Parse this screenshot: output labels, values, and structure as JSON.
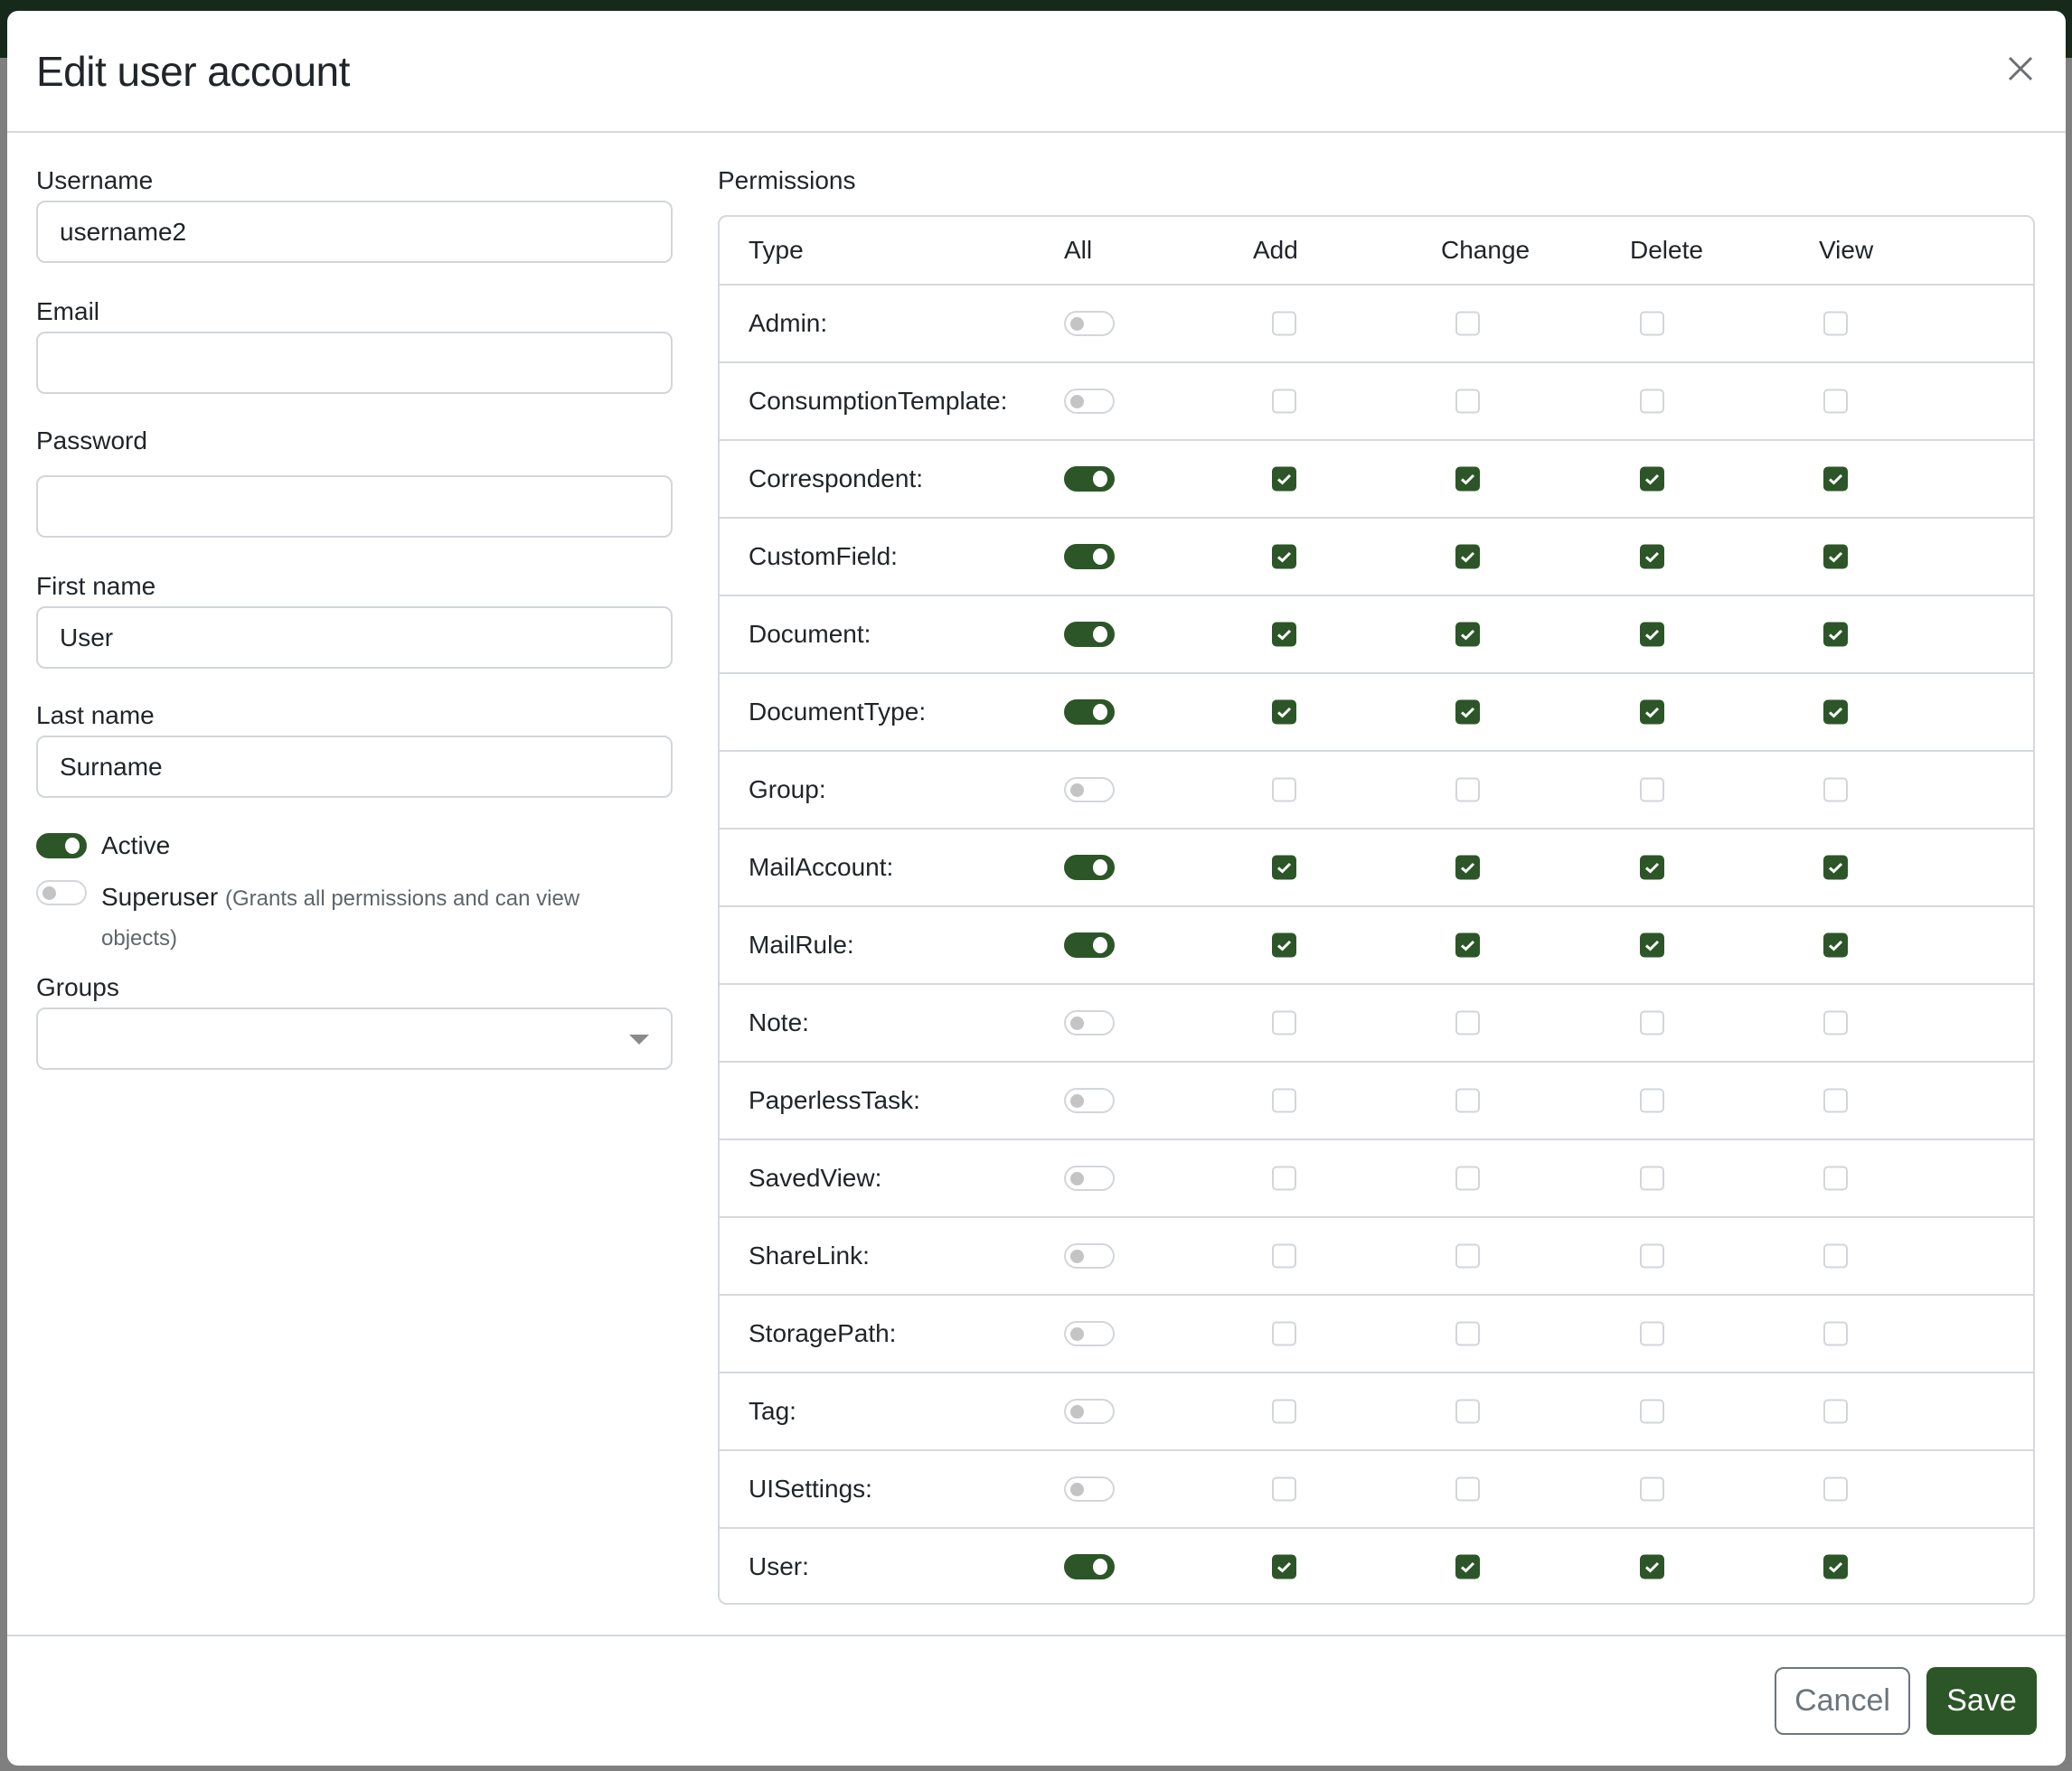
{
  "dialog": {
    "title": "Edit user account",
    "close_icon": "close-icon"
  },
  "form": {
    "username": {
      "label": "Username",
      "value": "username2"
    },
    "email": {
      "label": "Email",
      "value": ""
    },
    "password": {
      "label": "Password",
      "value": ""
    },
    "first_name": {
      "label": "First name",
      "value": "User"
    },
    "last_name": {
      "label": "Last name",
      "value": "Surname"
    },
    "active": {
      "label": "Active",
      "checked": true
    },
    "superuser": {
      "label": "Superuser",
      "hint": "(Grants all permissions and can view objects)",
      "checked": false
    },
    "groups": {
      "label": "Groups",
      "value": ""
    }
  },
  "permissions": {
    "label": "Permissions",
    "columns": [
      "Type",
      "All",
      "Add",
      "Change",
      "Delete",
      "View"
    ],
    "rows": [
      {
        "type": "Admin:",
        "all": false
      },
      {
        "type": "ConsumptionTemplate:",
        "all": false
      },
      {
        "type": "Correspondent:",
        "all": true
      },
      {
        "type": "CustomField:",
        "all": true
      },
      {
        "type": "Document:",
        "all": true
      },
      {
        "type": "DocumentType:",
        "all": true
      },
      {
        "type": "Group:",
        "all": false
      },
      {
        "type": "MailAccount:",
        "all": true
      },
      {
        "type": "MailRule:",
        "all": true
      },
      {
        "type": "Note:",
        "all": false
      },
      {
        "type": "PaperlessTask:",
        "all": false
      },
      {
        "type": "SavedView:",
        "all": false
      },
      {
        "type": "ShareLink:",
        "all": false
      },
      {
        "type": "StoragePath:",
        "all": false
      },
      {
        "type": "Tag:",
        "all": false
      },
      {
        "type": "UISettings:",
        "all": false
      },
      {
        "type": "User:",
        "all": true
      }
    ]
  },
  "footer": {
    "cancel_label": "Cancel",
    "save_label": "Save"
  },
  "colors": {
    "accent": "#2c5627",
    "border": "#d5d9de",
    "backdrop": "#7f7f7f"
  }
}
